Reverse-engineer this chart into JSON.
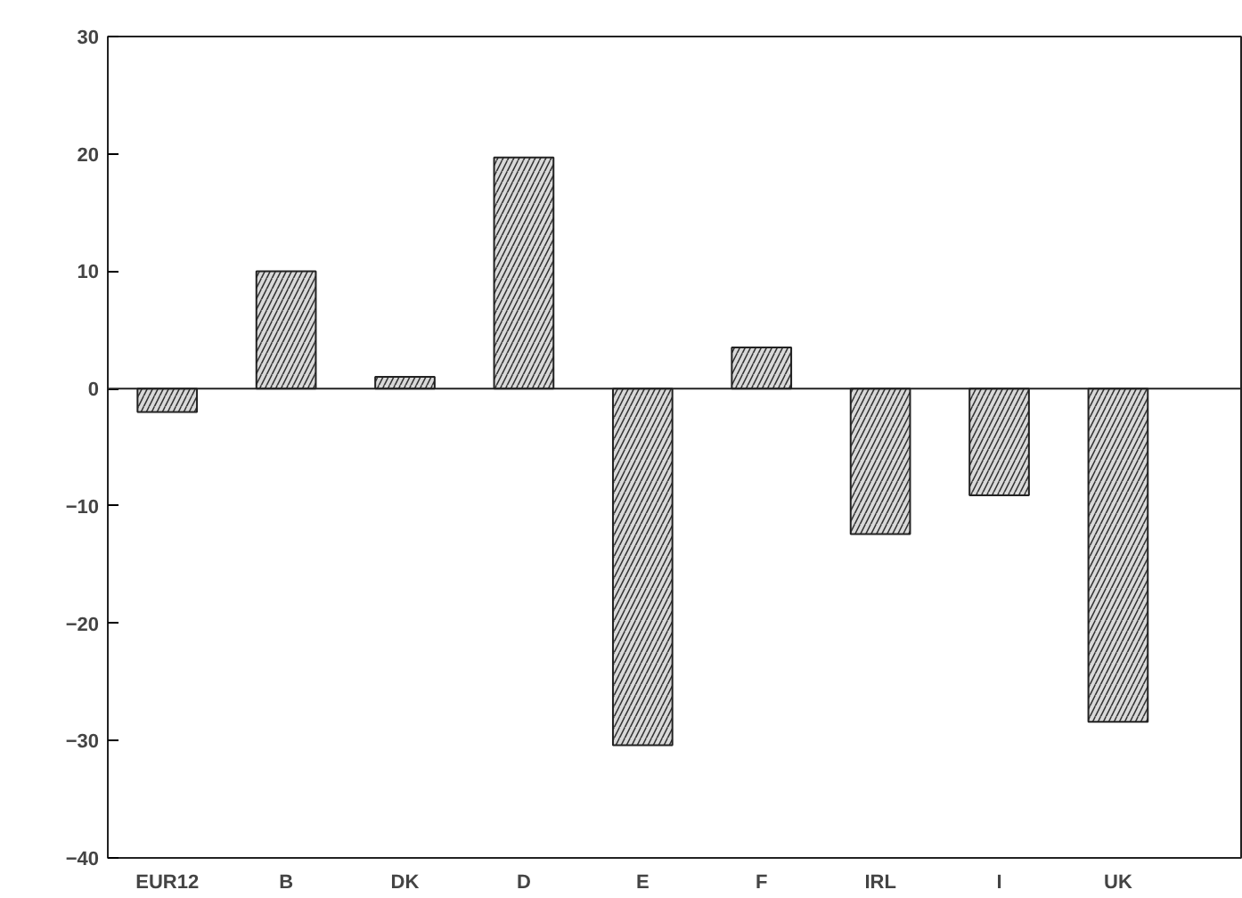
{
  "chart_data": {
    "type": "bar",
    "categories": [
      "EUR12",
      "B",
      "DK",
      "D",
      "E",
      "F",
      "IRL",
      "I",
      "UK"
    ],
    "values": [
      -2,
      10,
      1,
      19.7,
      -30.4,
      3.5,
      -12.4,
      -9.1,
      -28.4
    ],
    "color": "#d9d9d9",
    "ylim": [
      -40,
      30
    ],
    "yticks": [
      -40,
      -30,
      -20,
      -10,
      0,
      10,
      20,
      30
    ]
  }
}
